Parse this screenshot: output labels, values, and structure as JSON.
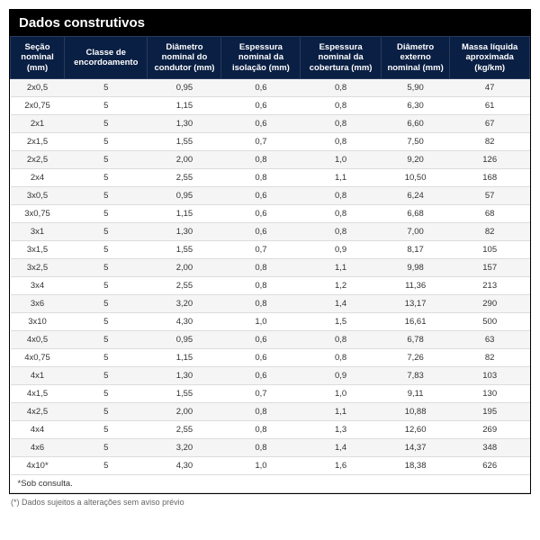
{
  "title": "Dados construtivos",
  "columns": [
    "Seção nominal (mm)",
    "Classe de encordoamento",
    "Diâmetro nominal do condutor (mm)",
    "Espessura nominal da isolação (mm)",
    "Espessura nominal da cobertura (mm)",
    "Diâmetro externo nominal (mm)",
    "Massa líquida aproximada (kg/km)"
  ],
  "rows": [
    [
      "2x0,5",
      "5",
      "0,95",
      "0,6",
      "0,8",
      "5,90",
      "47"
    ],
    [
      "2x0,75",
      "5",
      "1,15",
      "0,6",
      "0,8",
      "6,30",
      "61"
    ],
    [
      "2x1",
      "5",
      "1,30",
      "0,6",
      "0,8",
      "6,60",
      "67"
    ],
    [
      "2x1,5",
      "5",
      "1,55",
      "0,7",
      "0,8",
      "7,50",
      "82"
    ],
    [
      "2x2,5",
      "5",
      "2,00",
      "0,8",
      "1,0",
      "9,20",
      "126"
    ],
    [
      "2x4",
      "5",
      "2,55",
      "0,8",
      "1,1",
      "10,50",
      "168"
    ],
    [
      "3x0,5",
      "5",
      "0,95",
      "0,6",
      "0,8",
      "6,24",
      "57"
    ],
    [
      "3x0,75",
      "5",
      "1,15",
      "0,6",
      "0,8",
      "6,68",
      "68"
    ],
    [
      "3x1",
      "5",
      "1,30",
      "0,6",
      "0,8",
      "7,00",
      "82"
    ],
    [
      "3x1,5",
      "5",
      "1,55",
      "0,7",
      "0,9",
      "8,17",
      "105"
    ],
    [
      "3x2,5",
      "5",
      "2,00",
      "0,8",
      "1,1",
      "9,98",
      "157"
    ],
    [
      "3x4",
      "5",
      "2,55",
      "0,8",
      "1,2",
      "11,36",
      "213"
    ],
    [
      "3x6",
      "5",
      "3,20",
      "0,8",
      "1,4",
      "13,17",
      "290"
    ],
    [
      "3x10",
      "5",
      "4,30",
      "1,0",
      "1,5",
      "16,61",
      "500"
    ],
    [
      "4x0,5",
      "5",
      "0,95",
      "0,6",
      "0,8",
      "6,78",
      "63"
    ],
    [
      "4x0,75",
      "5",
      "1,15",
      "0,6",
      "0,8",
      "7,26",
      "82"
    ],
    [
      "4x1",
      "5",
      "1,30",
      "0,6",
      "0,9",
      "7,83",
      "103"
    ],
    [
      "4x1,5",
      "5",
      "1,55",
      "0,7",
      "1,0",
      "9,11",
      "130"
    ],
    [
      "4x2,5",
      "5",
      "2,00",
      "0,8",
      "1,1",
      "10,88",
      "195"
    ],
    [
      "4x4",
      "5",
      "2,55",
      "0,8",
      "1,3",
      "12,60",
      "269"
    ],
    [
      "4x6",
      "5",
      "3,20",
      "0,8",
      "1,4",
      "14,37",
      "348"
    ],
    [
      "4x10*",
      "5",
      "4,30",
      "1,0",
      "1,6",
      "18,38",
      "626"
    ]
  ],
  "footnote": "*Sob consulta.",
  "disclaimer": "(*) Dados sujeitos a alterações sem aviso prévio",
  "styling": {
    "title_bg": "#000000",
    "title_color": "#ffffff",
    "header_bg": "#0a1f44",
    "header_color": "#ffffff",
    "row_odd_bg": "#f5f5f5",
    "row_even_bg": "#ffffff",
    "border_color": "#dcdcdc",
    "font_family": "Arial",
    "title_fontsize": 15,
    "header_fontsize": 9.5,
    "body_fontsize": 9.5
  }
}
